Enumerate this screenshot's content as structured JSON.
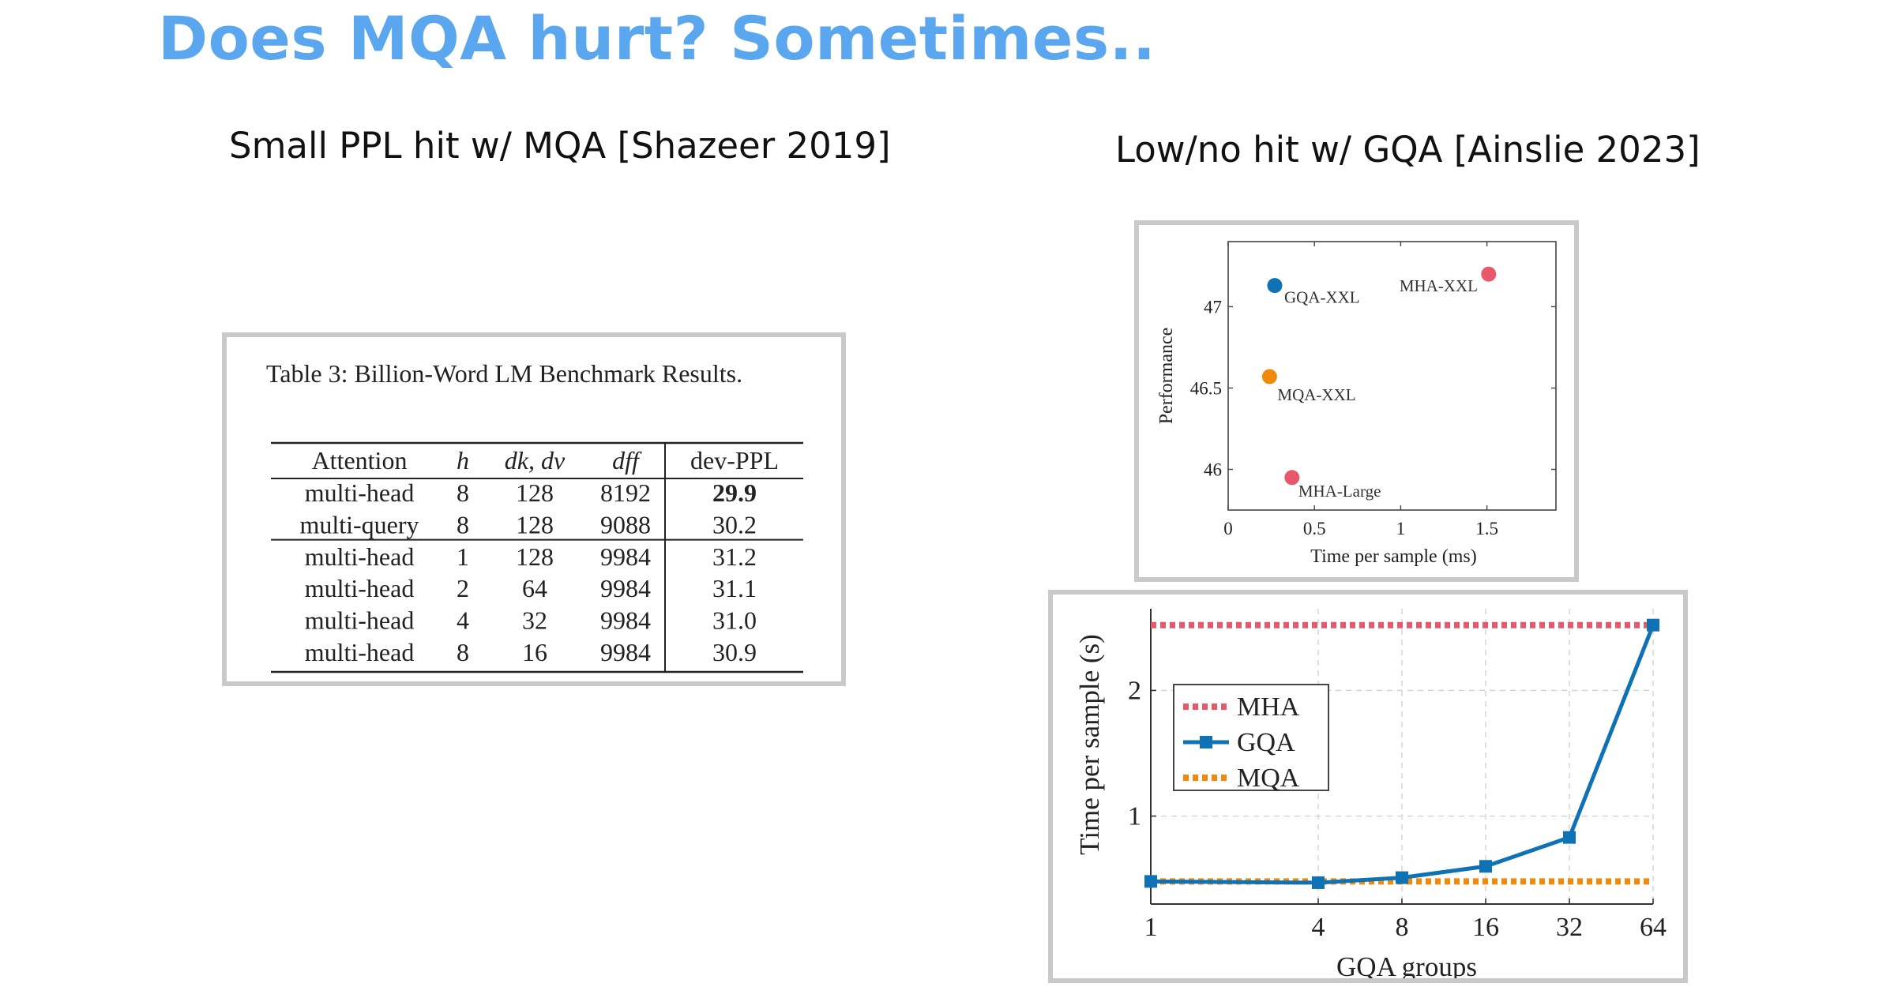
{
  "slide": {
    "title": "Does MQA hurt? Sometimes..",
    "subtitle_left": "Small PPL hit w/ MQA [Shazeer 2019]",
    "subtitle_right": "Low/no hit w/ GQA [Ainslie 2023]"
  },
  "colors": {
    "title": "#5aa6ef",
    "mha": "#e8586c",
    "gqa": "#0f72b5",
    "mqa": "#f08a0c",
    "frame": "#c9c9c9"
  },
  "chart_data": [
    {
      "type": "table",
      "title": "Table 3: Billion-Word LM Benchmark Results.",
      "columns": [
        "Attention",
        "h",
        "dk, dv",
        "dff",
        "dev-PPL"
      ],
      "rows": [
        [
          "multi-head",
          "8",
          "128",
          "8192",
          "29.9"
        ],
        [
          "multi-query",
          "8",
          "128",
          "9088",
          "30.2"
        ],
        [
          "multi-head",
          "1",
          "128",
          "9984",
          "31.2"
        ],
        [
          "multi-head",
          "2",
          "64",
          "9984",
          "31.1"
        ],
        [
          "multi-head",
          "4",
          "32",
          "9984",
          "31.0"
        ],
        [
          "multi-head",
          "8",
          "16",
          "9984",
          "30.9"
        ]
      ],
      "bold_cells": [
        [
          0,
          4
        ]
      ],
      "group_separator_after_row": 1
    },
    {
      "type": "scatter",
      "xlabel": "Time per sample (ms)",
      "ylabel": "Performance",
      "xlim": [
        0,
        1.9
      ],
      "ylim": [
        45.75,
        47.4
      ],
      "xticks": [
        "0",
        "0.5",
        "1",
        "1.5"
      ],
      "xtick_values": [
        0,
        0.5,
        1,
        1.5
      ],
      "yticks": [
        "46",
        "46.5",
        "47"
      ],
      "ytick_values": [
        46,
        46.5,
        47
      ],
      "grid": false,
      "points": [
        {
          "label": "GQA-XXL",
          "x": 0.27,
          "y": 47.13,
          "color": "#0f72b5"
        },
        {
          "label": "MHA-XXL",
          "x": 1.51,
          "y": 47.2,
          "color": "#e8586c"
        },
        {
          "label": "MQA-XXL",
          "x": 0.24,
          "y": 46.57,
          "color": "#f08a0c"
        },
        {
          "label": "MHA-Large",
          "x": 0.37,
          "y": 45.95,
          "color": "#e8586c"
        }
      ]
    },
    {
      "type": "line",
      "xlabel": "GQA groups",
      "ylabel": "Time per sample (s)",
      "x_scale": "log2",
      "categories": [
        "1",
        "4",
        "8",
        "16",
        "32",
        "64"
      ],
      "x": [
        1,
        4,
        8,
        16,
        32,
        64
      ],
      "ylim": [
        0.3,
        2.65
      ],
      "yticks": [
        "1",
        "2"
      ],
      "ytick_values": [
        1,
        2
      ],
      "grid": true,
      "legend_position": "left",
      "series": [
        {
          "name": "MHA",
          "style": "dotted",
          "color": "#e8586c",
          "values": [
            2.52,
            2.52,
            2.52,
            2.52,
            2.52,
            2.52
          ]
        },
        {
          "name": "GQA",
          "style": "solid",
          "color": "#0f72b5",
          "values": [
            0.48,
            0.47,
            0.51,
            0.6,
            0.83,
            2.52
          ]
        },
        {
          "name": "MQA",
          "style": "dotted",
          "color": "#f08a0c",
          "values": [
            0.48,
            0.48,
            0.48,
            0.48,
            0.48,
            0.48
          ]
        }
      ]
    }
  ]
}
